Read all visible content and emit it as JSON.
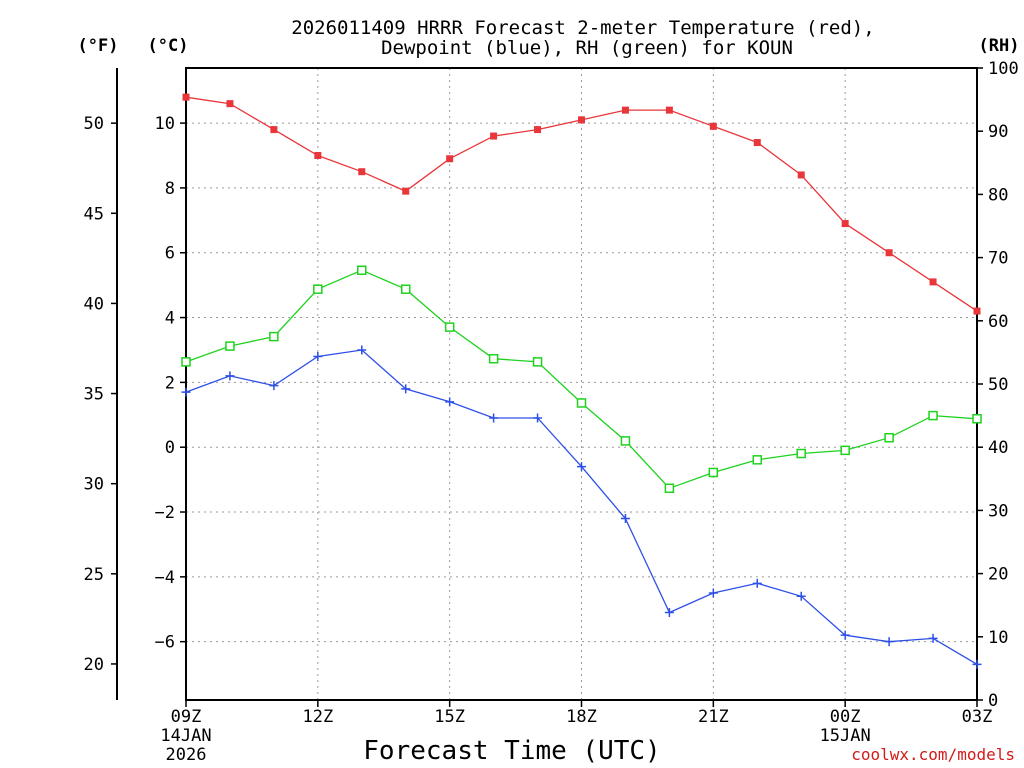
{
  "chart_data": {
    "type": "line",
    "title_line1": "2026011409 HRRR Forecast 2-meter Temperature (red),",
    "title_line2": "Dewpoint (blue), RH (green) for KOUN",
    "xlabel": "Forecast Time (UTC)",
    "units": {
      "fahrenheit": "(°F)",
      "celsius": "(°C)",
      "rh": "(RH)"
    },
    "x_hours": [
      0,
      1,
      2,
      3,
      4,
      5,
      6,
      7,
      8,
      9,
      10,
      11,
      12,
      13,
      14,
      15,
      16,
      17,
      18
    ],
    "xlim": [
      0,
      18
    ],
    "x_ticks": [
      {
        "h": 0,
        "label": "09Z",
        "sub1": "14JAN",
        "sub2": "2026"
      },
      {
        "h": 3,
        "label": "12Z",
        "sub1": "",
        "sub2": ""
      },
      {
        "h": 6,
        "label": "15Z",
        "sub1": "",
        "sub2": ""
      },
      {
        "h": 9,
        "label": "18Z",
        "sub1": "",
        "sub2": ""
      },
      {
        "h": 12,
        "label": "21Z",
        "sub1": "",
        "sub2": ""
      },
      {
        "h": 15,
        "label": "00Z",
        "sub1": "15JAN",
        "sub2": ""
      },
      {
        "h": 18,
        "label": "03Z",
        "sub1": "",
        "sub2": ""
      }
    ],
    "celsius_axis": {
      "ylim": [
        -7.8,
        11.7
      ],
      "ticks": [
        -6,
        -4,
        -2,
        0,
        2,
        4,
        6,
        8,
        10
      ],
      "tick_labels": [
        "−6",
        "−4",
        "−2",
        "0",
        "2",
        "4",
        "6",
        "8",
        "10"
      ]
    },
    "fahrenheit_axis": {
      "ylim": [
        18,
        53.06
      ],
      "ticks": [
        20,
        25,
        30,
        35,
        40,
        45,
        50
      ],
      "tick_labels": [
        "20",
        "25",
        "30",
        "35",
        "40",
        "45",
        "50"
      ]
    },
    "rh_axis": {
      "ylim": [
        0,
        100
      ],
      "ticks": [
        0,
        10,
        20,
        30,
        40,
        50,
        60,
        70,
        80,
        90,
        100
      ],
      "tick_labels": [
        "0",
        "10",
        "20",
        "30",
        "40",
        "50",
        "60",
        "70",
        "80",
        "90",
        "100"
      ]
    },
    "series": [
      {
        "name": "Temperature",
        "axis": "celsius",
        "color": "#e8363a",
        "marker": "filled-square",
        "values": [
          10.8,
          10.6,
          9.8,
          9.0,
          8.5,
          7.9,
          8.9,
          9.6,
          9.8,
          10.1,
          10.4,
          10.4,
          9.9,
          9.4,
          8.4,
          6.9,
          6.0,
          5.1,
          4.2
        ]
      },
      {
        "name": "Dewpoint",
        "axis": "celsius",
        "color": "#2d50e6",
        "marker": "plus",
        "values": [
          1.7,
          2.2,
          1.9,
          2.8,
          3.0,
          1.8,
          1.4,
          0.9,
          0.9,
          -0.6,
          -2.2,
          -5.1,
          -4.5,
          -4.2,
          -4.6,
          -5.8,
          -6.0,
          -5.9,
          -6.7
        ]
      },
      {
        "name": "RH",
        "axis": "rh",
        "color": "#1ed21e",
        "marker": "open-square",
        "values": [
          53.5,
          56.0,
          57.5,
          65.0,
          68.0,
          65.0,
          59.0,
          54.0,
          53.5,
          47.0,
          41.0,
          33.5,
          36.0,
          38.0,
          39.0,
          39.5,
          41.5,
          45.0,
          44.5
        ]
      }
    ]
  },
  "credit": "coolwx.com/models"
}
